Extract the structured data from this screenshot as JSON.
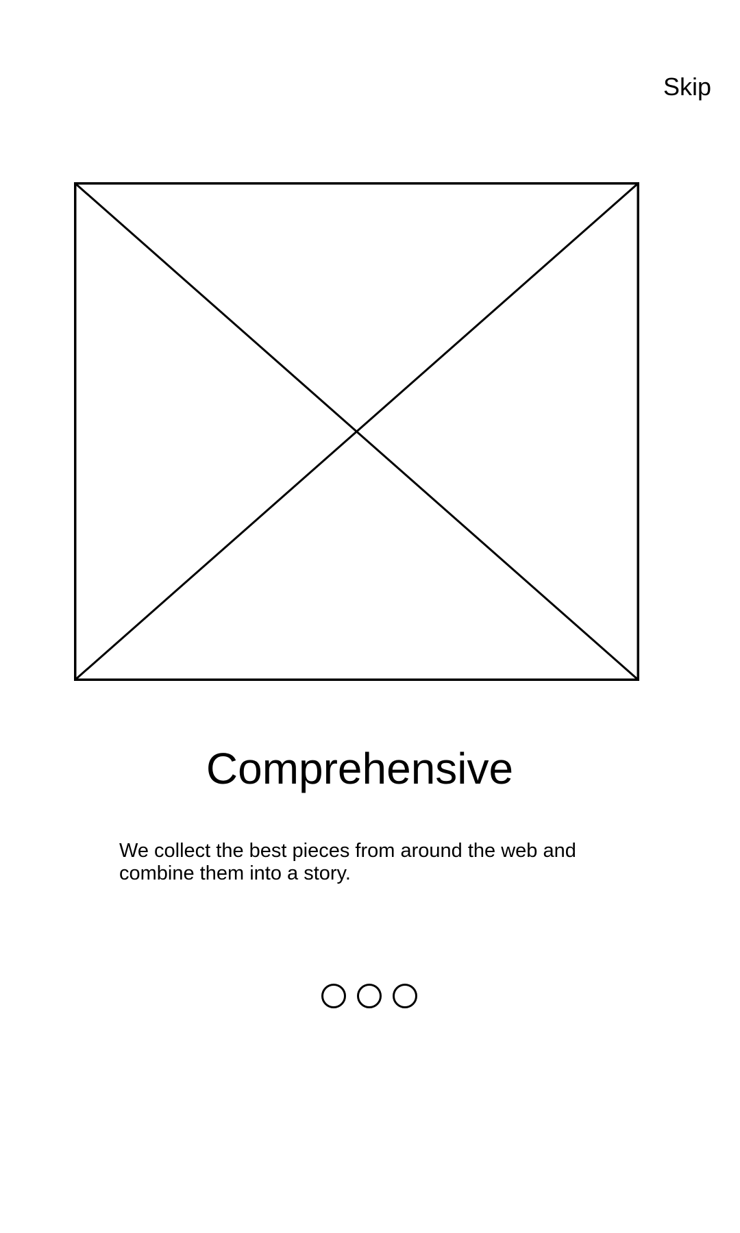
{
  "onboarding": {
    "skip_label": "Skip",
    "hero_image": {
      "icon": "image-placeholder-icon"
    },
    "title": "Comprehensive",
    "description_line_1": "We collect the best pieces from around the web and",
    "description_line_2": "combine them into a story.",
    "pager": {
      "page_count": 3
    }
  },
  "colors": {
    "background": "#ffffff",
    "foreground": "#000000"
  }
}
